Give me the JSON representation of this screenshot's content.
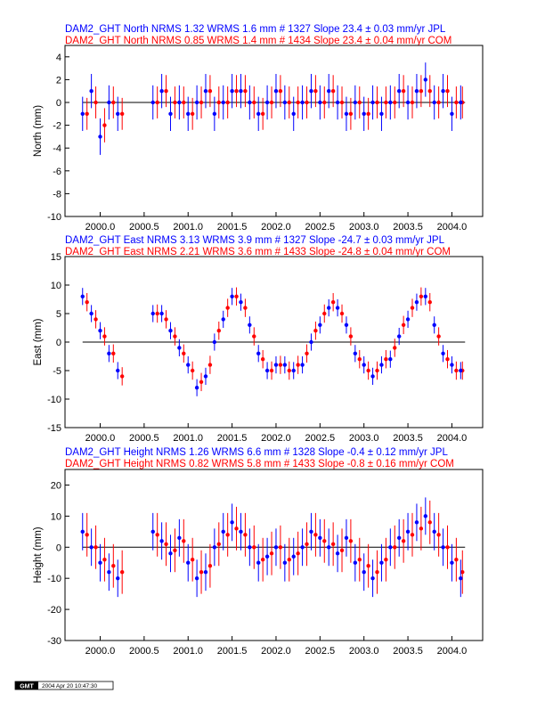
{
  "colors": {
    "jpl": "#0000ff",
    "com": "#ff0000",
    "axis": "#000000",
    "zero_line": "#000000"
  },
  "stamp": {
    "logo": "GMT",
    "date": "2004 Apr 20 10:47:30"
  },
  "chart_data": [
    {
      "type": "scatter",
      "component": "North",
      "title_lines": [
        "DAM2_GHT North NRMS 1.32 WRMS  1.6 mm # 1327 Slope   23.4 ±  0.03 mm/yr JPL",
        "DAM2_GHT North NRMS 0.85 WRMS  1.4 mm # 1434 Slope   23.4 ±  0.04 mm/yr COM"
      ],
      "ylabel": "North (mm)",
      "xlim": [
        1999.6,
        2004.35
      ],
      "ylim": [
        -10,
        5
      ],
      "xticks": [
        "2000.0",
        "2000.5",
        "2001.0",
        "2001.5",
        "2002.0",
        "2002.5",
        "2003.0",
        "2003.5",
        "2004.0"
      ],
      "yticks": [
        "-10",
        "-8",
        "-6",
        "-4",
        "-2",
        "0",
        "2",
        "4"
      ],
      "grid": false,
      "series": [
        {
          "name": "JPL",
          "nrms": 1.32,
          "wrms_mm": 1.6,
          "count": 1327,
          "slope_mm_yr": 23.4,
          "slope_err_mm_yr": 0.03,
          "x": [
            1999.8,
            1999.9,
            2000.0,
            2000.1,
            2000.2,
            2000.6,
            2000.7,
            2000.8,
            2000.9,
            2001.0,
            2001.1,
            2001.2,
            2001.3,
            2001.4,
            2001.5,
            2001.6,
            2001.7,
            2001.8,
            2001.9,
            2002.0,
            2002.1,
            2002.2,
            2002.3,
            2002.4,
            2002.5,
            2002.6,
            2002.7,
            2002.8,
            2002.9,
            2003.0,
            2003.1,
            2003.2,
            2003.3,
            2003.4,
            2003.5,
            2003.6,
            2003.7,
            2003.8,
            2003.9,
            2004.0,
            2004.1
          ],
          "y": [
            -1,
            1,
            -3,
            0,
            -1,
            0,
            1,
            -1,
            0,
            -1,
            0,
            1,
            -1,
            0,
            1,
            1,
            0,
            -1,
            0,
            1,
            0,
            -1,
            0,
            1,
            0,
            1,
            0,
            -1,
            0,
            -1,
            0,
            -1,
            0,
            1,
            0,
            1,
            2,
            0,
            1,
            -1,
            0
          ],
          "err": [
            1.5,
            1.5,
            1.6,
            1.5,
            1.5,
            1.5,
            1.5,
            1.5,
            1.5,
            1.5,
            1.5,
            1.5,
            1.5,
            1.5,
            1.5,
            1.5,
            1.5,
            1.5,
            1.5,
            1.5,
            1.5,
            1.5,
            1.5,
            1.5,
            1.5,
            1.5,
            1.5,
            1.5,
            1.5,
            1.5,
            1.5,
            1.5,
            1.5,
            1.5,
            1.5,
            1.5,
            1.5,
            1.5,
            1.5,
            1.5,
            1.5
          ]
        },
        {
          "name": "COM",
          "nrms": 0.85,
          "wrms_mm": 1.4,
          "count": 1434,
          "slope_mm_yr": 23.4,
          "slope_err_mm_yr": 0.04,
          "x": [
            1999.85,
            1999.95,
            2000.05,
            2000.15,
            2000.25,
            2000.65,
            2000.75,
            2000.85,
            2000.95,
            2001.05,
            2001.15,
            2001.25,
            2001.35,
            2001.45,
            2001.55,
            2001.65,
            2001.75,
            2001.85,
            2001.95,
            2002.05,
            2002.15,
            2002.25,
            2002.35,
            2002.45,
            2002.55,
            2002.65,
            2002.75,
            2002.85,
            2002.95,
            2003.05,
            2003.15,
            2003.25,
            2003.35,
            2003.45,
            2003.55,
            2003.65,
            2003.75,
            2003.85,
            2003.95,
            2004.05,
            2004.12
          ],
          "y": [
            -1,
            0,
            -2,
            0,
            -1,
            0,
            1,
            0,
            0,
            -1,
            0,
            1,
            0,
            0,
            1,
            1,
            0,
            -1,
            0,
            1,
            0,
            0,
            0,
            1,
            0,
            1,
            0,
            -1,
            0,
            -1,
            0,
            0,
            0,
            1,
            0,
            1,
            1,
            0,
            1,
            0,
            0
          ],
          "err": [
            1.4,
            1.4,
            1.5,
            1.4,
            1.4,
            1.4,
            1.4,
            1.4,
            1.4,
            1.4,
            1.4,
            1.4,
            1.4,
            1.4,
            1.4,
            1.4,
            1.4,
            1.4,
            1.4,
            1.4,
            1.4,
            1.4,
            1.4,
            1.4,
            1.4,
            1.4,
            1.4,
            1.4,
            1.4,
            1.4,
            1.4,
            1.4,
            1.4,
            1.4,
            1.4,
            1.4,
            1.4,
            1.4,
            1.4,
            1.4,
            1.4
          ]
        }
      ]
    },
    {
      "type": "scatter",
      "component": "East",
      "title_lines": [
        "DAM2_GHT East NRMS 3.13 WRMS  3.9 mm # 1327 Slope  -24.7 ±  0.03 mm/yr JPL",
        "DAM2_GHT East NRMS 2.21 WRMS  3.6 mm # 1433 Slope  -24.8 ±  0.04 mm/yr COM"
      ],
      "ylabel": "East (mm)",
      "xlim": [
        1999.6,
        2004.35
      ],
      "ylim": [
        -15,
        15
      ],
      "xticks": [
        "2000.0",
        "2000.5",
        "2001.0",
        "2001.5",
        "2002.0",
        "2002.5",
        "2003.0",
        "2003.5",
        "2004.0"
      ],
      "yticks": [
        "-15",
        "-10",
        "-5",
        "0",
        "5",
        "10",
        "15"
      ],
      "grid": false,
      "series": [
        {
          "name": "JPL",
          "nrms": 3.13,
          "wrms_mm": 3.9,
          "count": 1327,
          "slope_mm_yr": -24.7,
          "slope_err_mm_yr": 0.03,
          "x": [
            1999.8,
            1999.9,
            2000.0,
            2000.1,
            2000.2,
            2000.6,
            2000.7,
            2000.8,
            2000.9,
            2001.0,
            2001.1,
            2001.2,
            2001.3,
            2001.4,
            2001.5,
            2001.6,
            2001.7,
            2001.8,
            2001.9,
            2002.0,
            2002.1,
            2002.2,
            2002.3,
            2002.4,
            2002.5,
            2002.6,
            2002.7,
            2002.8,
            2002.9,
            2003.0,
            2003.1,
            2003.2,
            2003.3,
            2003.4,
            2003.5,
            2003.6,
            2003.7,
            2003.8,
            2003.9,
            2004.0,
            2004.1
          ],
          "y": [
            8,
            5,
            2,
            -2,
            -5,
            5,
            5,
            2,
            -1,
            -4,
            -8,
            -6,
            0,
            4,
            8,
            7,
            3,
            -2,
            -5,
            -4,
            -4,
            -5,
            -4,
            0,
            3,
            6,
            6,
            3,
            -2,
            -4,
            -6,
            -4,
            -3,
            1,
            4,
            7,
            8,
            3,
            -2,
            -4,
            -5
          ],
          "err": [
            1.5,
            1.5,
            1.5,
            1.5,
            1.5,
            1.5,
            1.5,
            1.5,
            1.5,
            1.5,
            1.5,
            1.5,
            1.5,
            1.5,
            1.5,
            1.5,
            1.5,
            1.5,
            1.5,
            1.5,
            1.5,
            1.5,
            1.5,
            1.5,
            1.5,
            1.5,
            1.5,
            1.5,
            1.5,
            1.5,
            1.5,
            1.5,
            1.5,
            1.5,
            1.5,
            1.5,
            1.5,
            1.5,
            1.5,
            1.5,
            1.5
          ]
        },
        {
          "name": "COM",
          "nrms": 2.21,
          "wrms_mm": 3.6,
          "count": 1433,
          "slope_mm_yr": -24.8,
          "slope_err_mm_yr": 0.04,
          "x": [
            1999.85,
            1999.95,
            2000.05,
            2000.15,
            2000.25,
            2000.65,
            2000.75,
            2000.85,
            2000.95,
            2001.05,
            2001.15,
            2001.25,
            2001.35,
            2001.45,
            2001.55,
            2001.65,
            2001.75,
            2001.85,
            2001.95,
            2002.05,
            2002.15,
            2002.25,
            2002.35,
            2002.45,
            2002.55,
            2002.65,
            2002.75,
            2002.85,
            2002.95,
            2003.05,
            2003.15,
            2003.25,
            2003.35,
            2003.45,
            2003.55,
            2003.65,
            2003.75,
            2003.85,
            2003.95,
            2004.05,
            2004.12
          ],
          "y": [
            7,
            4,
            1,
            -2,
            -6,
            5,
            4,
            1,
            -2,
            -5,
            -7,
            -4,
            2,
            6,
            8,
            6,
            1,
            -3,
            -5,
            -4,
            -5,
            -4,
            -2,
            2,
            5,
            7,
            5,
            1,
            -3,
            -5,
            -5,
            -3,
            -1,
            3,
            6,
            8,
            7,
            1,
            -3,
            -5,
            -5
          ],
          "err": [
            1.6,
            1.6,
            1.6,
            1.6,
            1.6,
            1.6,
            1.6,
            1.6,
            1.6,
            1.6,
            1.6,
            1.6,
            1.6,
            1.6,
            1.6,
            1.6,
            1.6,
            1.6,
            1.6,
            1.6,
            1.6,
            1.6,
            1.6,
            1.6,
            1.6,
            1.6,
            1.6,
            1.6,
            1.6,
            1.6,
            1.6,
            1.6,
            1.6,
            1.6,
            1.6,
            1.6,
            1.6,
            1.6,
            1.6,
            1.6,
            1.6
          ]
        }
      ]
    },
    {
      "type": "scatter",
      "component": "Height",
      "title_lines": [
        "DAM2_GHT Height NRMS 1.26 WRMS  6.6 mm # 1328 Slope   -0.4 ±  0.12 mm/yr JPL",
        "DAM2_GHT Height NRMS 0.82 WRMS  5.8 mm # 1433 Slope   -0.8 ±  0.16 mm/yr COM"
      ],
      "ylabel": "Height (mm)",
      "xlim": [
        1999.6,
        2004.35
      ],
      "ylim": [
        -30,
        25
      ],
      "xticks": [
        "2000.0",
        "2000.5",
        "2001.0",
        "2001.5",
        "2002.0",
        "2002.5",
        "2003.0",
        "2003.5",
        "2004.0"
      ],
      "yticks": [
        "-30",
        "-20",
        "-10",
        "0",
        "10",
        "20"
      ],
      "grid": false,
      "series": [
        {
          "name": "JPL",
          "nrms": 1.26,
          "wrms_mm": 6.6,
          "count": 1328,
          "slope_mm_yr": -0.4,
          "slope_err_mm_yr": 0.12,
          "x": [
            1999.8,
            1999.9,
            2000.0,
            2000.1,
            2000.2,
            2000.6,
            2000.7,
            2000.8,
            2000.9,
            2001.0,
            2001.1,
            2001.2,
            2001.3,
            2001.4,
            2001.5,
            2001.6,
            2001.7,
            2001.8,
            2001.9,
            2002.0,
            2002.1,
            2002.2,
            2002.3,
            2002.4,
            2002.5,
            2002.6,
            2002.7,
            2002.8,
            2002.9,
            2003.0,
            2003.1,
            2003.2,
            2003.3,
            2003.4,
            2003.5,
            2003.6,
            2003.7,
            2003.8,
            2003.9,
            2004.0,
            2004.1
          ],
          "y": [
            5,
            0,
            -5,
            -8,
            -10,
            5,
            2,
            -2,
            3,
            -5,
            -10,
            -8,
            0,
            5,
            8,
            5,
            0,
            -5,
            -3,
            0,
            -5,
            -3,
            0,
            5,
            3,
            0,
            -2,
            3,
            -5,
            -8,
            -10,
            -5,
            0,
            3,
            5,
            8,
            10,
            5,
            0,
            -5,
            -10
          ],
          "err": [
            6,
            6,
            6,
            6,
            6,
            6,
            6,
            6,
            6,
            6,
            6,
            6,
            6,
            6,
            6,
            6,
            6,
            6,
            6,
            6,
            6,
            6,
            6,
            6,
            6,
            6,
            6,
            6,
            6,
            6,
            6,
            6,
            6,
            6,
            6,
            6,
            6,
            6,
            6,
            6,
            6
          ]
        },
        {
          "name": "COM",
          "nrms": 0.82,
          "wrms_mm": 5.8,
          "count": 1433,
          "slope_mm_yr": -0.8,
          "slope_err_mm_yr": 0.16,
          "x": [
            1999.85,
            1999.95,
            2000.05,
            2000.15,
            2000.25,
            2000.65,
            2000.75,
            2000.85,
            2000.95,
            2001.05,
            2001.15,
            2001.25,
            2001.35,
            2001.45,
            2001.55,
            2001.65,
            2001.75,
            2001.85,
            2001.95,
            2002.05,
            2002.15,
            2002.25,
            2002.35,
            2002.45,
            2002.55,
            2002.65,
            2002.75,
            2002.85,
            2002.95,
            2003.05,
            2003.15,
            2003.25,
            2003.35,
            2003.45,
            2003.55,
            2003.65,
            2003.75,
            2003.85,
            2003.95,
            2004.05,
            2004.12
          ],
          "y": [
            4,
            0,
            -4,
            -6,
            -8,
            4,
            1,
            -1,
            2,
            -4,
            -8,
            -6,
            1,
            4,
            6,
            4,
            0,
            -4,
            -2,
            0,
            -4,
            -2,
            1,
            4,
            2,
            1,
            -1,
            2,
            -4,
            -6,
            -8,
            -4,
            0,
            2,
            4,
            6,
            8,
            4,
            0,
            -4,
            -8
          ],
          "err": [
            7,
            7,
            7,
            7,
            7,
            7,
            7,
            7,
            7,
            7,
            7,
            7,
            7,
            7,
            7,
            7,
            7,
            7,
            7,
            7,
            7,
            7,
            7,
            7,
            7,
            7,
            7,
            7,
            7,
            7,
            7,
            7,
            7,
            7,
            7,
            7,
            7,
            7,
            7,
            7,
            7
          ]
        }
      ]
    }
  ]
}
